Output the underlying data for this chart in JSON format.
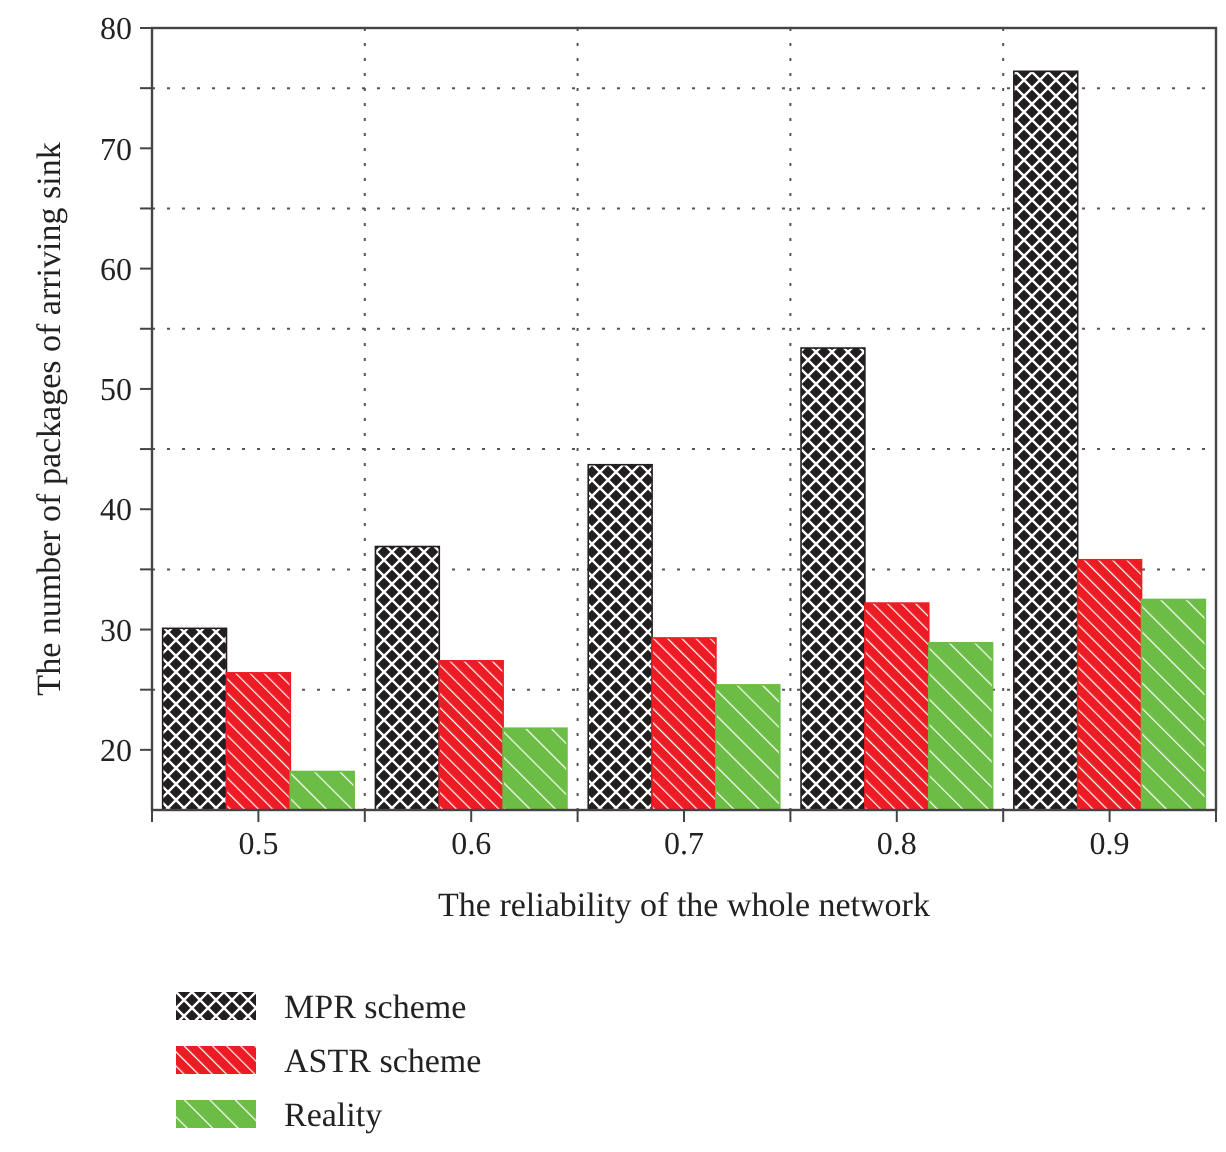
{
  "chart_data": {
    "type": "bar",
    "xlabel": "The reliability of the whole network",
    "ylabel": "The number of packages of arriving sink",
    "categories": [
      "0.5",
      "0.6",
      "0.7",
      "0.8",
      "0.9"
    ],
    "series": [
      {
        "name": "MPR scheme",
        "color": "#231f20",
        "values": [
          30.1,
          36.9,
          43.7,
          53.4,
          76.4
        ]
      },
      {
        "name": "ASTR scheme",
        "color": "#ed1c24",
        "values": [
          26.4,
          27.4,
          29.3,
          32.2,
          35.8
        ]
      },
      {
        "name": "Reality",
        "color": "#6cbd45",
        "values": [
          18.2,
          21.8,
          25.4,
          28.9,
          32.5
        ]
      }
    ],
    "ylim": [
      15,
      80
    ],
    "yticks": [
      20,
      {
        "value": 25,
        "label": null
      },
      30,
      {
        "value": 35,
        "label": null
      },
      40,
      {
        "value": 45,
        "label": null
      },
      50,
      {
        "value": 55,
        "label": null
      },
      60,
      {
        "value": 65,
        "label": null
      },
      70,
      {
        "value": 75,
        "label": null
      },
      80
    ],
    "grid": true,
    "legend": "bottom"
  }
}
